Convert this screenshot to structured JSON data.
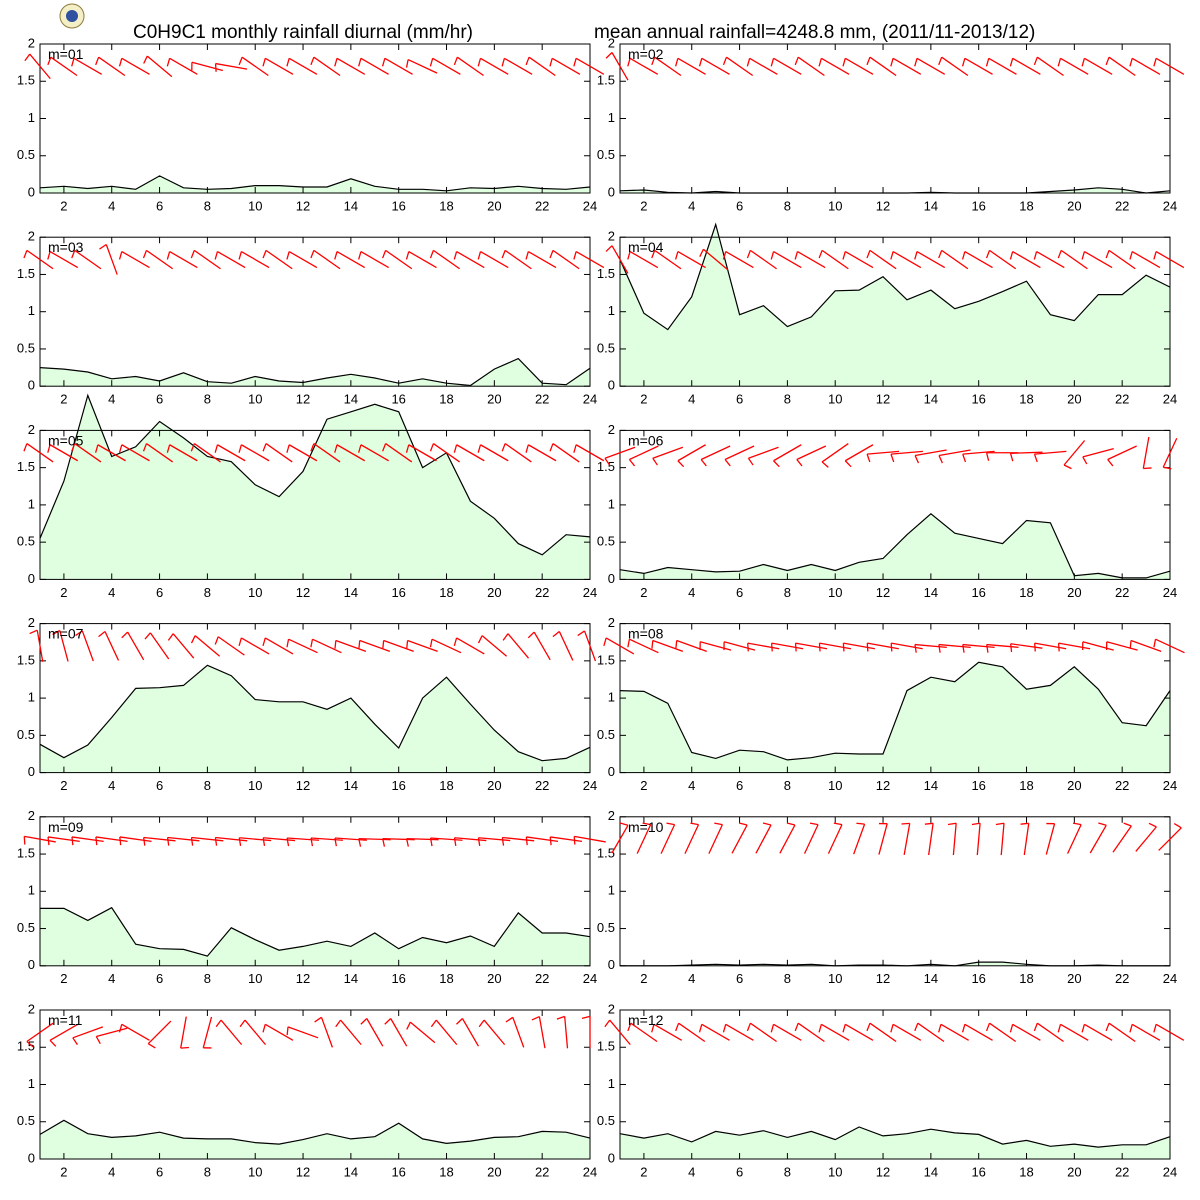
{
  "header": {
    "title": "C0H9C1 monthly rainfall diurnal (mm/hr)",
    "subtitle": "mean annual rainfall=4248.8 mm, (2011/11-2013/12)"
  },
  "chart_data": [
    {
      "type": "area",
      "label": "m=01",
      "values": [
        0.07,
        0.09,
        0.06,
        0.09,
        0.05,
        0.23,
        0.07,
        0.05,
        0.06,
        0.1,
        0.1,
        0.08,
        0.08,
        0.19,
        0.09,
        0.05,
        0.05,
        0.03,
        0.07,
        0.06,
        0.09,
        0.06,
        0.05,
        0.08
      ],
      "wind_direction": [
        320,
        305,
        300,
        305,
        300,
        310,
        300,
        285,
        280,
        305,
        300,
        300,
        305,
        300,
        300,
        300,
        295,
        300,
        305,
        300,
        300,
        305,
        300,
        300
      ]
    },
    {
      "type": "area",
      "label": "m=02",
      "values": [
        0.03,
        0.04,
        0.01,
        0,
        0.02,
        0,
        0,
        0,
        0,
        0,
        0,
        0,
        0,
        0.01,
        0,
        0,
        0,
        0,
        0.02,
        0.04,
        0.07,
        0.05,
        0,
        0.03
      ],
      "wind_direction": [
        330,
        300,
        305,
        300,
        300,
        305,
        300,
        300,
        305,
        300,
        300,
        305,
        300,
        300,
        305,
        300,
        300,
        300,
        305,
        300,
        300,
        305,
        300,
        300
      ]
    },
    {
      "type": "area",
      "label": "m=03",
      "values": [
        0.25,
        0.23,
        0.19,
        0.1,
        0.13,
        0.07,
        0.18,
        0.06,
        0.04,
        0.13,
        0.07,
        0.05,
        0.11,
        0.16,
        0.11,
        0.04,
        0.1,
        0.04,
        0.01,
        0.23,
        0.37,
        0.04,
        0.02,
        0.24
      ],
      "wind_direction": [
        305,
        300,
        305,
        340,
        300,
        305,
        300,
        305,
        300,
        300,
        305,
        300,
        305,
        300,
        300,
        305,
        300,
        305,
        300,
        300,
        305,
        300,
        305,
        300
      ]
    },
    {
      "type": "area",
      "label": "m=04",
      "values": [
        1.7,
        0.98,
        0.76,
        1.2,
        2.17,
        0.96,
        1.08,
        0.8,
        0.93,
        1.28,
        1.29,
        1.47,
        1.16,
        1.29,
        1.04,
        1.14,
        1.27,
        1.41,
        0.96,
        0.88,
        1.23,
        1.23,
        1.49,
        1.33
      ],
      "wind_direction": [
        330,
        300,
        305,
        300,
        310,
        300,
        305,
        300,
        300,
        305,
        300,
        305,
        300,
        300,
        305,
        300,
        305,
        300,
        300,
        305,
        300,
        305,
        300,
        300
      ]
    },
    {
      "type": "area",
      "label": "m=05",
      "values": [
        0.55,
        1.32,
        2.47,
        1.65,
        1.78,
        2.12,
        1.9,
        1.65,
        1.58,
        1.27,
        1.11,
        1.45,
        2.15,
        2.25,
        2.35,
        2.25,
        1.5,
        1.7,
        1.05,
        0.82,
        0.48,
        0.33,
        0.6,
        0.57
      ],
      "wind_direction": [
        305,
        300,
        305,
        300,
        300,
        305,
        300,
        305,
        300,
        300,
        305,
        300,
        305,
        300,
        300,
        305,
        300,
        305,
        300,
        300,
        305,
        300,
        305,
        300
      ]
    },
    {
      "type": "area",
      "label": "m=06",
      "values": [
        0.13,
        0.08,
        0.16,
        0.13,
        0.1,
        0.11,
        0.2,
        0.12,
        0.2,
        0.12,
        0.23,
        0.28,
        0.6,
        0.88,
        0.62,
        0.55,
        0.48,
        0.79,
        0.76,
        0.05,
        0.08,
        0.02,
        0.02,
        0.11
      ],
      "wind_direction": [
        250,
        245,
        250,
        240,
        245,
        245,
        250,
        240,
        245,
        235,
        240,
        265,
        265,
        260,
        260,
        265,
        270,
        268,
        265,
        220,
        255,
        245,
        190,
        205
      ]
    },
    {
      "type": "area",
      "label": "m=07",
      "values": [
        0.38,
        0.2,
        0.37,
        0.74,
        1.13,
        1.14,
        1.17,
        1.44,
        1.3,
        0.98,
        0.95,
        0.95,
        0.85,
        1.0,
        0.65,
        0.33,
        1.0,
        1.28,
        0.92,
        0.57,
        0.28,
        0.16,
        0.19,
        0.34
      ],
      "wind_direction": [
        350,
        345,
        340,
        335,
        330,
        325,
        320,
        310,
        305,
        300,
        300,
        295,
        295,
        290,
        290,
        290,
        290,
        295,
        300,
        310,
        320,
        330,
        335,
        340
      ]
    },
    {
      "type": "area",
      "label": "m=08",
      "values": [
        1.1,
        1.09,
        0.93,
        0.27,
        0.19,
        0.3,
        0.28,
        0.17,
        0.2,
        0.26,
        0.25,
        0.25,
        1.1,
        1.28,
        1.22,
        1.48,
        1.42,
        1.12,
        1.17,
        1.42,
        1.12,
        0.67,
        0.63,
        1.1
      ],
      "wind_direction": [
        300,
        295,
        290,
        290,
        285,
        285,
        280,
        280,
        280,
        280,
        280,
        280,
        280,
        275,
        275,
        275,
        275,
        278,
        280,
        280,
        285,
        285,
        290,
        295
      ]
    },
    {
      "type": "area",
      "label": "m=09",
      "values": [
        0.77,
        0.77,
        0.61,
        0.78,
        0.29,
        0.23,
        0.22,
        0.13,
        0.51,
        0.35,
        0.21,
        0.26,
        0.33,
        0.26,
        0.44,
        0.23,
        0.38,
        0.31,
        0.4,
        0.26,
        0.71,
        0.44,
        0.44,
        0.39
      ],
      "wind_direction": [
        280,
        278,
        278,
        278,
        278,
        276,
        276,
        276,
        276,
        275,
        275,
        274,
        274,
        274,
        272,
        272,
        272,
        274,
        275,
        275,
        276,
        278,
        278,
        280
      ]
    },
    {
      "type": "area",
      "label": "m=10",
      "values": [
        0,
        0,
        0,
        0.01,
        0.02,
        0.01,
        0.02,
        0.01,
        0.02,
        0,
        0.01,
        0.01,
        0,
        0.02,
        0,
        0.05,
        0.05,
        0.02,
        0,
        0,
        0.01,
        0,
        0,
        0
      ],
      "wind_direction": [
        30,
        25,
        25,
        25,
        25,
        28,
        28,
        28,
        25,
        25,
        20,
        15,
        10,
        8,
        5,
        5,
        5,
        8,
        15,
        25,
        30,
        35,
        40,
        45
      ]
    },
    {
      "type": "area",
      "label": "m=11",
      "values": [
        0.33,
        0.52,
        0.34,
        0.29,
        0.31,
        0.36,
        0.28,
        0.27,
        0.27,
        0.22,
        0.2,
        0.26,
        0.34,
        0.27,
        0.3,
        0.48,
        0.27,
        0.21,
        0.24,
        0.29,
        0.3,
        0.37,
        0.36,
        0.28
      ],
      "wind_direction": [
        235,
        240,
        250,
        255,
        300,
        225,
        190,
        195,
        320,
        320,
        300,
        290,
        340,
        320,
        330,
        330,
        310,
        320,
        330,
        320,
        340,
        350,
        355,
        0
      ]
    },
    {
      "type": "area",
      "label": "m=12",
      "values": [
        0.34,
        0.28,
        0.34,
        0.23,
        0.37,
        0.32,
        0.38,
        0.29,
        0.37,
        0.26,
        0.43,
        0.31,
        0.34,
        0.4,
        0.35,
        0.33,
        0.2,
        0.25,
        0.17,
        0.2,
        0.16,
        0.19,
        0.19,
        0.3
      ],
      "wind_direction": [
        320,
        305,
        300,
        305,
        300,
        300,
        305,
        300,
        305,
        300,
        300,
        305,
        300,
        305,
        300,
        300,
        305,
        300,
        305,
        300,
        300,
        305,
        300,
        300
      ]
    }
  ],
  "axes": {
    "x": [
      1,
      2,
      3,
      4,
      5,
      6,
      7,
      8,
      9,
      10,
      11,
      12,
      13,
      14,
      15,
      16,
      17,
      18,
      19,
      20,
      21,
      22,
      23,
      24
    ],
    "xlim": [
      1,
      24
    ],
    "ylim": [
      0,
      2
    ],
    "xticks": [
      2,
      4,
      6,
      8,
      10,
      12,
      14,
      16,
      18,
      20,
      22,
      24
    ],
    "yticks": [
      0,
      0.5,
      1,
      1.5,
      2
    ],
    "fill": "#e0ffe0",
    "line": "#000000",
    "barb_color": "#ff0000"
  }
}
